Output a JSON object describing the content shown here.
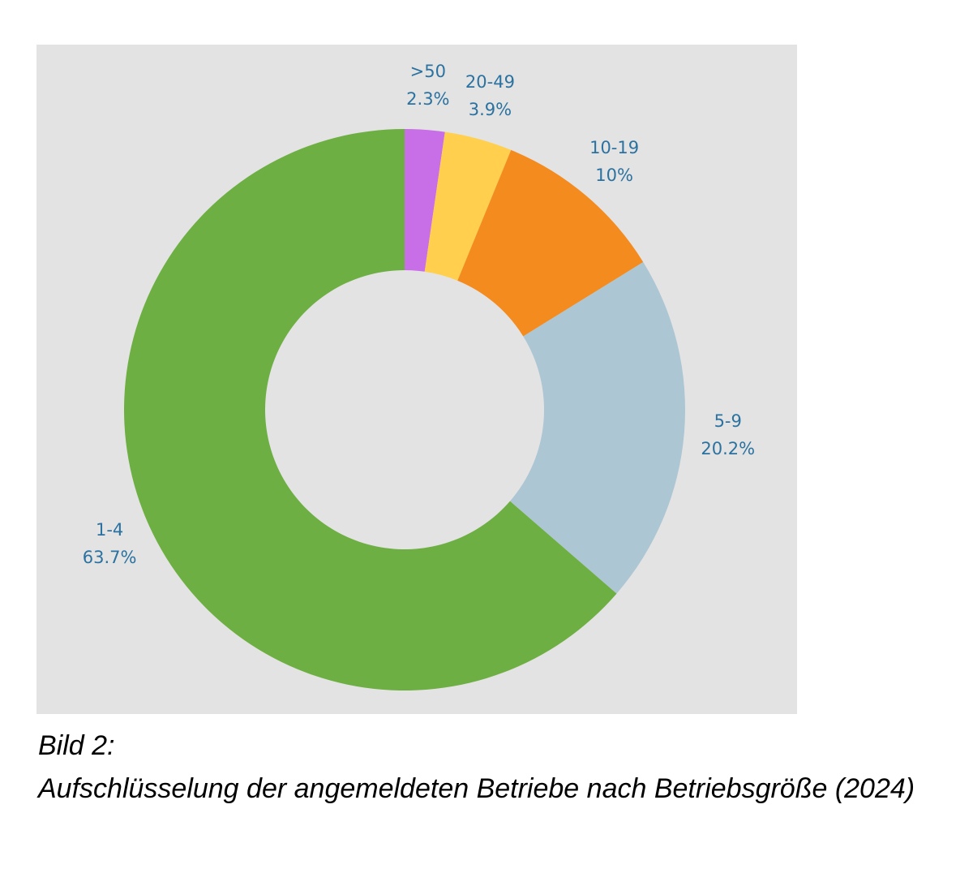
{
  "chart_data": {
    "type": "donut",
    "categories": [
      ">50",
      "20-49",
      "10-19",
      "5-9",
      "1-4"
    ],
    "values": [
      2.3,
      3.9,
      10,
      20.2,
      63.7
    ],
    "value_labels": [
      "2.3%",
      "3.9%",
      "10%",
      "20.2%",
      "63.7%"
    ],
    "colors": [
      "#c86ee6",
      "#ffcf4d",
      "#f48b1e",
      "#adc6d3",
      "#6daf42"
    ],
    "caption_label": "Bild 2:",
    "caption": "Aufschlüsselung der angemeldeten Betriebe nach Betriebsgröße (2024)"
  }
}
